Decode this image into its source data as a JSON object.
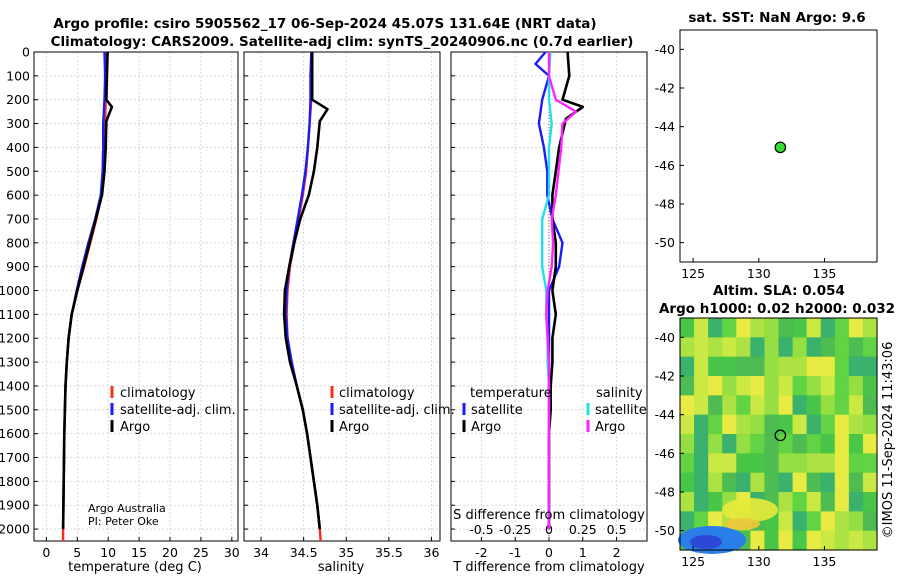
{
  "figure": {
    "title_line1": "Argo profile: csiro 5905562_17 06-Sep-2024 45.07S 131.64E (NRT data)",
    "title_line2": "Climatology: CARS2009. Satellite-adj clim: synTS_20240906.nc (0.7d earlier)",
    "credit_line1": "Argo Australia",
    "credit_line2": "PI: Peter Oke",
    "watermark": "©IMOS 11-Sep-2024 11:43:06",
    "s_diff_label": "S difference from climatology"
  },
  "colors": {
    "climatology": "#ff2a1a",
    "satellite": "#1a1aff",
    "argo": "#000000",
    "s_satellite": "#22e0e8",
    "s_argo": "#ff22ff",
    "marker": "#33dd33",
    "grid": "#cfcfcf"
  },
  "legend_tt": {
    "items": [
      "climatology",
      "satellite-adj. clim.",
      "Argo"
    ]
  },
  "legend_s": {
    "items": [
      "climatology",
      "satellite-adj. clim.",
      "Argo"
    ]
  },
  "legend_diff": {
    "temperature_header": "temperature",
    "salinity_header": "salinity",
    "t_items": [
      "satellite",
      "Argo"
    ],
    "s_items": [
      "satellite",
      "Argo"
    ]
  },
  "map_sst": {
    "title": "sat. SST: NaN Argo: 9.6",
    "x_ticks": [
      125,
      130,
      135
    ],
    "y_ticks": [
      -40,
      -42,
      -44,
      -46,
      -48,
      -50
    ],
    "xlim": [
      124,
      139
    ],
    "ylim": [
      -51,
      -39
    ],
    "argo_lon": 131.64,
    "argo_lat": -45.07
  },
  "map_sla": {
    "title_line1": "Altim. SLA: 0.054",
    "title_line2": "Argo h1000: 0.02 h2000: 0.032",
    "x_ticks": [
      125,
      130,
      135
    ],
    "y_ticks": [
      -40,
      -42,
      -44,
      -46,
      -48,
      -50
    ],
    "xlim": [
      124,
      139
    ],
    "ylim": [
      -51,
      -39
    ],
    "argo_lon": 131.64,
    "argo_lat": -45.07
  },
  "chart_data": [
    {
      "type": "line",
      "title": "",
      "xlabel": "temperature (deg C)",
      "ylabel": "",
      "xlim": [
        -2,
        31
      ],
      "ylim": [
        2050,
        0
      ],
      "x_ticks": [
        0,
        5,
        10,
        15,
        20,
        25,
        30
      ],
      "y_ticks": [
        0,
        100,
        200,
        300,
        400,
        500,
        600,
        700,
        800,
        900,
        1000,
        1100,
        1200,
        1300,
        1400,
        1500,
        1600,
        1700,
        1800,
        1900,
        2000
      ],
      "series": [
        {
          "name": "climatology",
          "points": [
            [
              9.6,
              0
            ],
            [
              9.6,
              100
            ],
            [
              9.6,
              200
            ],
            [
              9.5,
              300
            ],
            [
              9.4,
              400
            ],
            [
              9.2,
              500
            ],
            [
              8.9,
              600
            ],
            [
              8.1,
              700
            ],
            [
              7.1,
              800
            ],
            [
              6.1,
              900
            ],
            [
              5.0,
              1000
            ],
            [
              4.1,
              1100
            ],
            [
              3.6,
              1200
            ],
            [
              3.3,
              1300
            ],
            [
              3.1,
              1400
            ],
            [
              3.0,
              1500
            ],
            [
              2.9,
              1600
            ],
            [
              2.85,
              1700
            ],
            [
              2.8,
              1800
            ],
            [
              2.75,
              1900
            ],
            [
              2.7,
              2000
            ],
            [
              2.7,
              2050
            ]
          ]
        },
        {
          "name": "satellite-adj. clim.",
          "points": [
            [
              9.4,
              0
            ],
            [
              9.5,
              100
            ],
            [
              9.4,
              200
            ],
            [
              9.2,
              300
            ],
            [
              9.2,
              400
            ],
            [
              9.1,
              500
            ],
            [
              8.8,
              600
            ],
            [
              7.9,
              700
            ],
            [
              6.8,
              800
            ],
            [
              5.8,
              900
            ],
            [
              4.9,
              1000
            ],
            [
              4.1,
              1100
            ],
            [
              3.6,
              1200
            ],
            [
              3.3,
              1300
            ],
            [
              3.1,
              1400
            ],
            [
              3.0,
              1500
            ],
            [
              2.9,
              1600
            ],
            [
              2.85,
              1700
            ],
            [
              2.8,
              1800
            ],
            [
              2.75,
              1900
            ],
            [
              2.7,
              2000
            ]
          ]
        },
        {
          "name": "Argo",
          "points": [
            [
              9.9,
              0
            ],
            [
              9.8,
              100
            ],
            [
              9.7,
              200
            ],
            [
              10.6,
              230
            ],
            [
              9.7,
              290
            ],
            [
              9.6,
              400
            ],
            [
              9.4,
              500
            ],
            [
              9.0,
              600
            ],
            [
              8.0,
              700
            ],
            [
              7.0,
              800
            ],
            [
              6.0,
              900
            ],
            [
              5.0,
              1000
            ],
            [
              4.1,
              1100
            ],
            [
              3.6,
              1200
            ],
            [
              3.3,
              1300
            ],
            [
              3.1,
              1400
            ],
            [
              3.0,
              1500
            ],
            [
              2.9,
              1600
            ],
            [
              2.85,
              1700
            ],
            [
              2.8,
              1800
            ],
            [
              2.75,
              1900
            ],
            [
              2.7,
              2000
            ]
          ]
        }
      ]
    },
    {
      "type": "line",
      "title": "",
      "xlabel": "salinity",
      "ylabel": "",
      "xlim": [
        33.8,
        36.1
      ],
      "ylim": [
        2050,
        0
      ],
      "x_ticks": [
        34,
        34.5,
        35,
        35.5,
        36
      ],
      "x_tick_labels": [
        "34",
        "34.5",
        "35",
        "35.5",
        "36"
      ],
      "series": [
        {
          "name": "climatology",
          "points": [
            [
              34.59,
              0
            ],
            [
              34.59,
              100
            ],
            [
              34.59,
              200
            ],
            [
              34.57,
              300
            ],
            [
              34.55,
              400
            ],
            [
              34.53,
              500
            ],
            [
              34.49,
              600
            ],
            [
              34.44,
              700
            ],
            [
              34.39,
              800
            ],
            [
              34.34,
              900
            ],
            [
              34.31,
              1000
            ],
            [
              34.3,
              1100
            ],
            [
              34.31,
              1200
            ],
            [
              34.36,
              1300
            ],
            [
              34.42,
              1400
            ],
            [
              34.49,
              1500
            ],
            [
              34.54,
              1600
            ],
            [
              34.58,
              1700
            ],
            [
              34.62,
              1800
            ],
            [
              34.66,
              1900
            ],
            [
              34.69,
              2000
            ],
            [
              34.7,
              2050
            ]
          ]
        },
        {
          "name": "satellite-adj. clim.",
          "points": [
            [
              34.59,
              0
            ],
            [
              34.58,
              100
            ],
            [
              34.58,
              200
            ],
            [
              34.57,
              300
            ],
            [
              34.55,
              400
            ],
            [
              34.52,
              500
            ],
            [
              34.48,
              600
            ],
            [
              34.43,
              700
            ],
            [
              34.38,
              800
            ],
            [
              34.33,
              900
            ],
            [
              34.3,
              1000
            ],
            [
              34.29,
              1100
            ],
            [
              34.31,
              1200
            ],
            [
              34.36,
              1300
            ],
            [
              34.42,
              1400
            ],
            [
              34.49,
              1500
            ],
            [
              34.54,
              1600
            ],
            [
              34.58,
              1700
            ],
            [
              34.62,
              1800
            ],
            [
              34.66,
              1900
            ],
            [
              34.69,
              2000
            ]
          ]
        },
        {
          "name": "Argo",
          "points": [
            [
              34.6,
              0
            ],
            [
              34.6,
              100
            ],
            [
              34.6,
              200
            ],
            [
              34.78,
              240
            ],
            [
              34.69,
              290
            ],
            [
              34.66,
              400
            ],
            [
              34.62,
              500
            ],
            [
              34.56,
              600
            ],
            [
              34.46,
              700
            ],
            [
              34.39,
              800
            ],
            [
              34.33,
              900
            ],
            [
              34.28,
              1000
            ],
            [
              34.27,
              1100
            ],
            [
              34.29,
              1200
            ],
            [
              34.34,
              1300
            ],
            [
              34.42,
              1400
            ],
            [
              34.49,
              1500
            ],
            [
              34.54,
              1600
            ],
            [
              34.58,
              1700
            ],
            [
              34.62,
              1800
            ],
            [
              34.66,
              1900
            ],
            [
              34.69,
              2000
            ]
          ]
        }
      ]
    },
    {
      "type": "line",
      "title": "",
      "xlabel": "T difference from climatology",
      "xlabel_top": "S difference from climatology",
      "ylabel": "",
      "xlim": [
        -2.9,
        2.9
      ],
      "ylim": [
        2050,
        0
      ],
      "x_ticks": [
        -2,
        -1,
        0,
        1,
        2
      ],
      "s_ticks": [
        -0.5,
        -0.25,
        0,
        0.25,
        0.5
      ],
      "s_tick_labels": [
        "-0.5",
        "-0.25",
        "0",
        "0.25",
        "0.5"
      ],
      "series": [
        {
          "name": "T satellite",
          "points": [
            [
              -0.1,
              0
            ],
            [
              -0.4,
              50
            ],
            [
              0,
              100
            ],
            [
              -0.2,
              200
            ],
            [
              -0.3,
              300
            ],
            [
              -0.15,
              400
            ],
            [
              -0.05,
              500
            ],
            [
              -0.05,
              600
            ],
            [
              0.1,
              700
            ],
            [
              0.4,
              800
            ],
            [
              0.3,
              900
            ],
            [
              0,
              1000
            ],
            [
              0,
              1100
            ],
            [
              0,
              1200
            ],
            [
              0,
              1300
            ],
            [
              0,
              1400
            ],
            [
              0,
              1500
            ],
            [
              0,
              1600
            ],
            [
              0,
              1700
            ],
            [
              0,
              1800
            ],
            [
              0,
              1900
            ],
            [
              0,
              2000
            ]
          ]
        },
        {
          "name": "T Argo",
          "points": [
            [
              0.55,
              0
            ],
            [
              0.6,
              100
            ],
            [
              0.4,
              200
            ],
            [
              1.0,
              230
            ],
            [
              0.5,
              280
            ],
            [
              0.3,
              400
            ],
            [
              0.2,
              500
            ],
            [
              0.1,
              600
            ],
            [
              0.1,
              700
            ],
            [
              0.2,
              800
            ],
            [
              0.2,
              900
            ],
            [
              0.1,
              1000
            ],
            [
              0.2,
              1100
            ],
            [
              0.1,
              1200
            ],
            [
              0.1,
              1300
            ],
            [
              0.05,
              1400
            ],
            [
              0.05,
              1500
            ],
            [
              0,
              1600
            ],
            [
              0,
              1700
            ],
            [
              0,
              1800
            ],
            [
              0,
              1900
            ],
            [
              0,
              2000
            ]
          ]
        },
        {
          "name": "S satellite",
          "points": [
            [
              0.01,
              0
            ],
            [
              0,
              100
            ],
            [
              0,
              200
            ],
            [
              0.02,
              300
            ],
            [
              0,
              400
            ],
            [
              0,
              500
            ],
            [
              0,
              600
            ],
            [
              -0.05,
              700
            ],
            [
              -0.05,
              800
            ],
            [
              -0.05,
              900
            ],
            [
              -0.02,
              1000
            ],
            [
              -0.02,
              1100
            ],
            [
              -0.01,
              1200
            ],
            [
              -0.01,
              1300
            ],
            [
              0,
              1400
            ],
            [
              0,
              1500
            ],
            [
              0,
              1600
            ],
            [
              0,
              1700
            ],
            [
              0,
              1800
            ],
            [
              0,
              1900
            ],
            [
              0,
              2000
            ]
          ]
        },
        {
          "name": "S Argo",
          "points": [
            [
              0,
              0
            ],
            [
              0,
              100
            ],
            [
              0.05,
              200
            ],
            [
              0.2,
              250
            ],
            [
              0.1,
              300
            ],
            [
              0.09,
              400
            ],
            [
              0.07,
              500
            ],
            [
              0.05,
              600
            ],
            [
              0.02,
              700
            ],
            [
              0.03,
              800
            ],
            [
              0.02,
              900
            ],
            [
              -0.01,
              1000
            ],
            [
              -0.02,
              1100
            ],
            [
              -0.01,
              1200
            ],
            [
              0,
              1300
            ],
            [
              0,
              1400
            ],
            [
              0,
              1500
            ],
            [
              0,
              1600
            ],
            [
              0,
              1700
            ],
            [
              0,
              1800
            ],
            [
              0,
              1900
            ],
            [
              0,
              2000
            ]
          ]
        }
      ]
    }
  ]
}
